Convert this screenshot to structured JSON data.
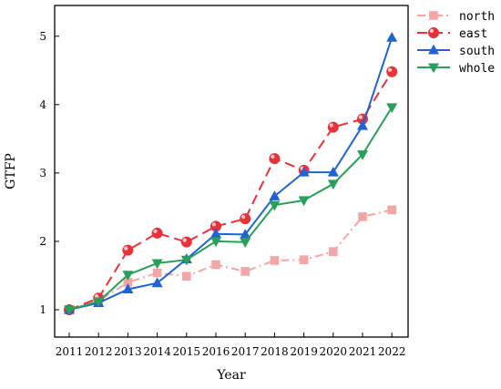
{
  "chart_data": {
    "type": "line",
    "title": "",
    "xlabel": "Year",
    "ylabel": "GTFP",
    "x": [
      2011,
      2012,
      2013,
      2014,
      2015,
      2016,
      2017,
      2018,
      2019,
      2020,
      2021,
      2022
    ],
    "xticks": [
      "2011",
      "2012",
      "2013",
      "2014",
      "2015",
      "2016",
      "2017",
      "2018",
      "2019",
      "2020",
      "2021",
      "2022"
    ],
    "ylim": [
      0.6,
      5.45
    ],
    "yticks": [
      "1",
      "2",
      "3",
      "4",
      "5"
    ],
    "grid": false,
    "legend_position": "top-right",
    "series": [
      {
        "name": "north",
        "color": "#f4a6a6",
        "line_style": "dash-dot",
        "marker": "square",
        "values": [
          1.0,
          1.13,
          1.4,
          1.54,
          1.49,
          1.66,
          1.56,
          1.72,
          1.73,
          1.85,
          2.36,
          2.46
        ]
      },
      {
        "name": "east",
        "color": "#e8323a",
        "line_style": "dashed",
        "marker": "sphere",
        "values": [
          1.0,
          1.17,
          1.87,
          2.12,
          1.99,
          2.22,
          2.33,
          3.21,
          3.04,
          3.67,
          3.79,
          4.48
        ]
      },
      {
        "name": "south",
        "color": "#1f63d4",
        "line_style": "solid",
        "marker": "triangle-up",
        "values": [
          1.0,
          1.1,
          1.3,
          1.39,
          1.74,
          2.11,
          2.1,
          2.66,
          3.01,
          3.01,
          3.69,
          4.98
        ]
      },
      {
        "name": "whole",
        "color": "#27a05a",
        "line_style": "solid",
        "marker": "triangle-down",
        "values": [
          1.0,
          1.12,
          1.51,
          1.68,
          1.73,
          2.0,
          1.99,
          2.53,
          2.6,
          2.84,
          3.27,
          3.96
        ]
      }
    ]
  }
}
